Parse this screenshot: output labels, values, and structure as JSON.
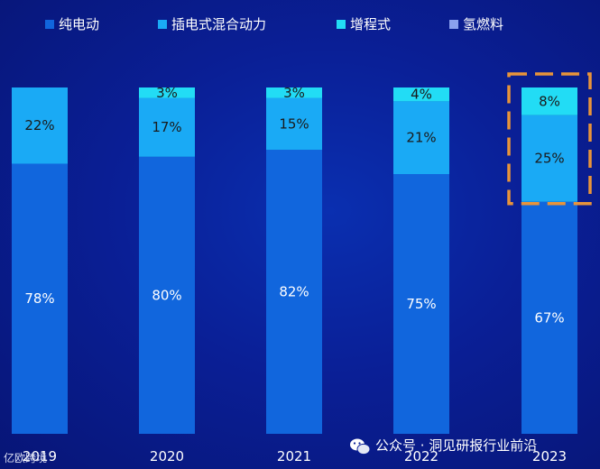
{
  "chart_data": {
    "type": "bar",
    "stacked": true,
    "percent": true,
    "categories": [
      "2019",
      "2020",
      "2021",
      "2022",
      "2023"
    ],
    "series": [
      {
        "name": "纯电动",
        "color": "#1166dd",
        "values": [
          78,
          80,
          82,
          75,
          67
        ]
      },
      {
        "name": "插电式混合动力",
        "color": "#1aaaf5",
        "values": [
          22,
          17,
          15,
          21,
          25
        ]
      },
      {
        "name": "增程式",
        "color": "#22dcf5",
        "values": [
          0,
          3,
          3,
          4,
          8
        ]
      },
      {
        "name": "氢燃料",
        "color": "#8aa0ee",
        "values": [
          0,
          0,
          0,
          0,
          0
        ]
      }
    ],
    "labels": [
      [
        "78%",
        "22%",
        null,
        null
      ],
      [
        "80%",
        "17%",
        "3%",
        null
      ],
      [
        "82%",
        "15%",
        "3%",
        null
      ],
      [
        "75%",
        "21%",
        "4%",
        null
      ],
      [
        "67%",
        "25%",
        "8%",
        null
      ]
    ],
    "highlight": {
      "category": "2023",
      "series": [
        "插电式混合动力",
        "增程式"
      ],
      "style": "dashed-box",
      "color": "#e8943a"
    },
    "ylim": [
      0,
      100
    ],
    "legend": "top",
    "grid": false
  },
  "watermark": {
    "text": "公众号 · 洞见研报行业前沿",
    "icon": "wechat-icon"
  },
  "corner_mark": {
    "text": "亿欧跨境"
  }
}
